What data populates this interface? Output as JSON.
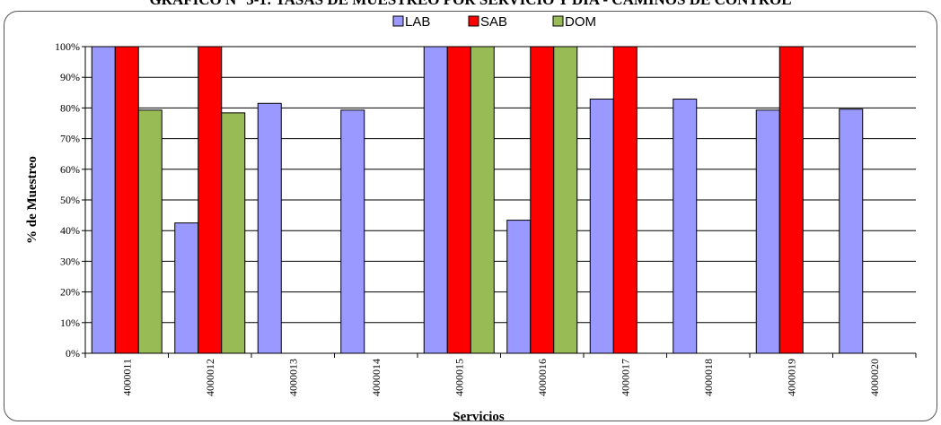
{
  "page": {
    "title": "GRÁFICO N° 3-1: TASAS DE MUESTREO POR SERVICIO Y DÍA - CAMINOS DE CONTROL"
  },
  "chart_data": {
    "type": "bar",
    "title": "",
    "xlabel": "Servicios",
    "ylabel": "% de Muestreo",
    "ylim": [
      0,
      100
    ],
    "yticks": [
      "0%",
      "10%",
      "20%",
      "30%",
      "40%",
      "50%",
      "60%",
      "70%",
      "80%",
      "90%",
      "100%"
    ],
    "grid": true,
    "legend_position": "top",
    "categories": [
      "4000011",
      "4000012",
      "4000013",
      "4000014",
      "4000015",
      "4000016",
      "4000017",
      "4000018",
      "4000019",
      "4000020"
    ],
    "series": [
      {
        "name": "LAB",
        "color": "#9999FF",
        "values": [
          100,
          42.5,
          81.5,
          79.3,
          100,
          43.4,
          82.9,
          82.9,
          79.3,
          79.6
        ]
      },
      {
        "name": "SAB",
        "color": "#FF0000",
        "values": [
          100,
          100,
          0,
          0,
          100,
          100,
          100,
          0,
          100,
          0
        ]
      },
      {
        "name": "DOM",
        "color": "#99BB55",
        "values": [
          79.3,
          78.4,
          0,
          0,
          100,
          100,
          0,
          0,
          0,
          0
        ]
      }
    ]
  }
}
